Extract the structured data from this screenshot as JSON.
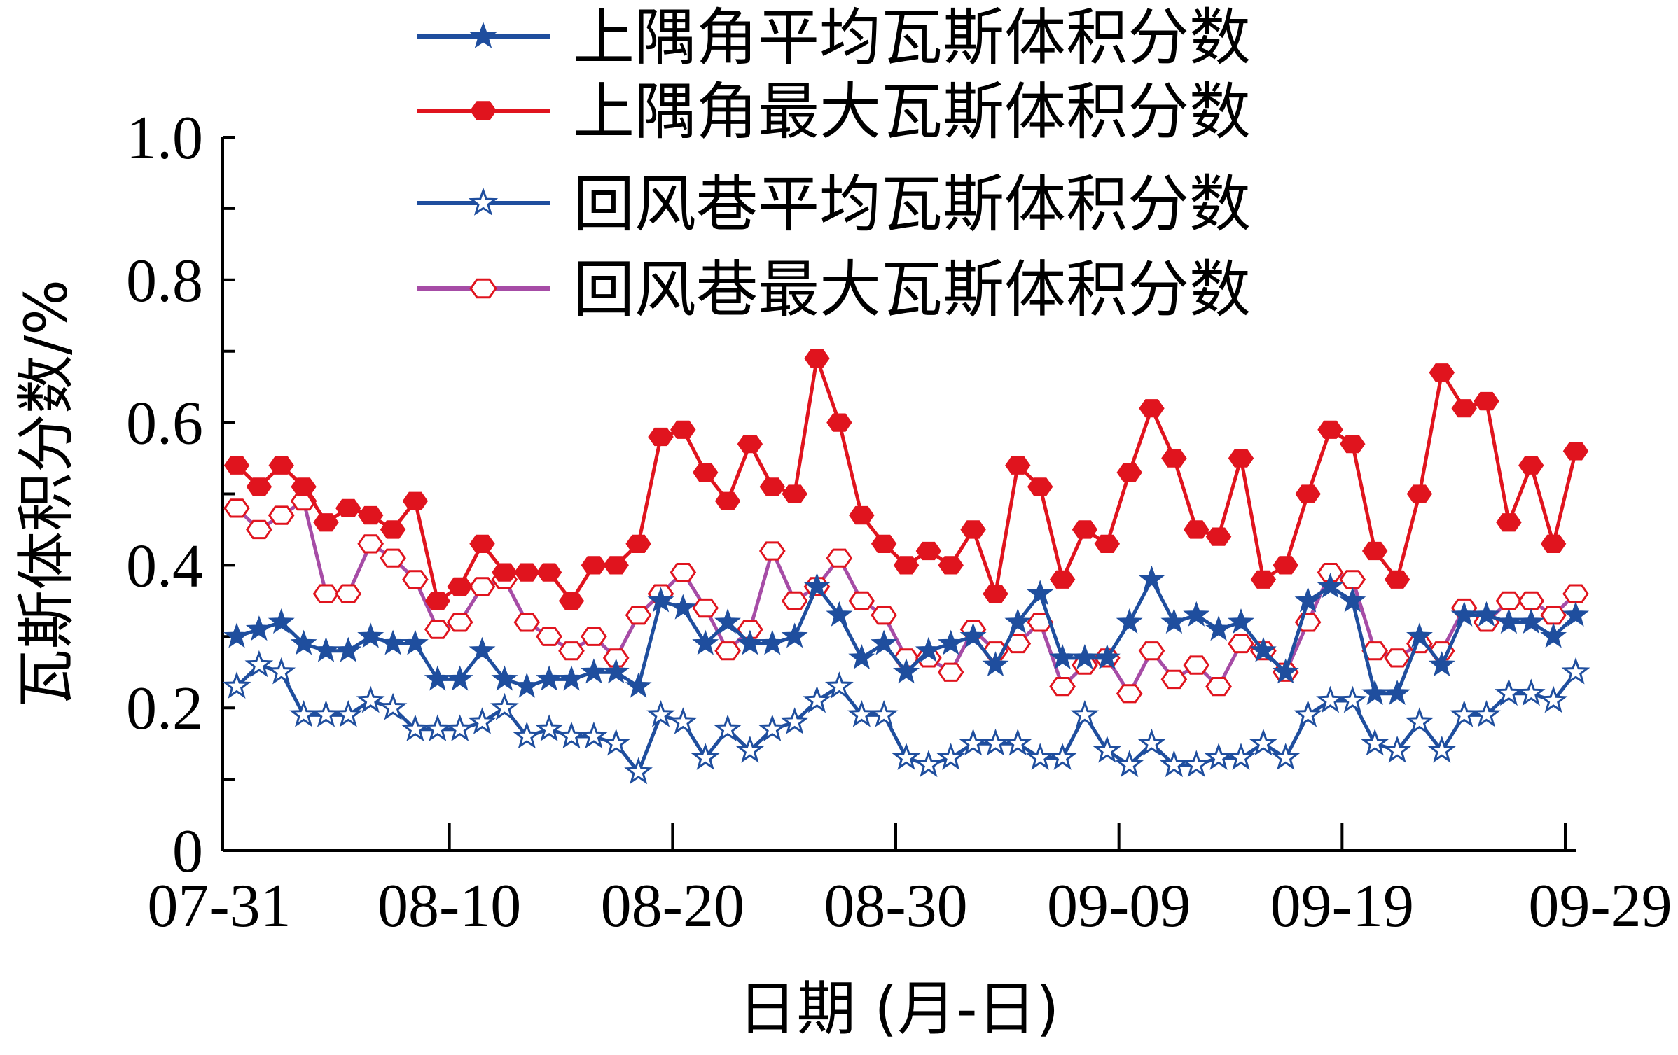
{
  "chart_data": {
    "type": "line",
    "title": "",
    "xlabel": "日期 (月-日)",
    "ylabel": "瓦斯体积分数/%",
    "ylim": [
      0,
      1.0
    ],
    "yticks": [
      0,
      0.2,
      0.4,
      0.6,
      0.8,
      1.0
    ],
    "ytick_labels": [
      "0",
      "0.2",
      "0.4",
      "0.6",
      "0.8",
      "1.0"
    ],
    "x_start": "07-31",
    "x_end": "09-29",
    "xtick_labels": [
      "07-31",
      "08-10",
      "08-20",
      "08-30",
      "09-09",
      "09-19",
      "09-29"
    ],
    "grid": false,
    "legend_position": "top",
    "series": [
      {
        "name": "上隅角平均瓦斯体积分数",
        "color": "#1f4e9e",
        "marker": "filled-star",
        "values": [
          0.3,
          0.31,
          0.32,
          0.29,
          0.28,
          0.28,
          0.3,
          0.29,
          0.29,
          0.24,
          0.24,
          0.28,
          0.24,
          0.23,
          0.24,
          0.24,
          0.25,
          0.25,
          0.23,
          0.35,
          0.34,
          0.29,
          0.32,
          0.29,
          0.29,
          0.3,
          0.37,
          0.33,
          0.27,
          0.29,
          0.25,
          0.28,
          0.29,
          0.3,
          0.26,
          0.32,
          0.36,
          0.27,
          0.27,
          0.27,
          0.32,
          0.38,
          0.32,
          0.33,
          0.31,
          0.32,
          0.28,
          0.25,
          0.35,
          0.37,
          0.35,
          0.22,
          0.22,
          0.3,
          0.26,
          0.33,
          0.33,
          0.32,
          0.32,
          0.3,
          0.33
        ]
      },
      {
        "name": "上隅角最大瓦斯体积分数",
        "color": "#e0141e",
        "marker": "filled-hexagon",
        "values": [
          0.54,
          0.51,
          0.54,
          0.51,
          0.46,
          0.48,
          0.47,
          0.45,
          0.49,
          0.35,
          0.37,
          0.43,
          0.39,
          0.39,
          0.39,
          0.35,
          0.4,
          0.4,
          0.43,
          0.58,
          0.59,
          0.53,
          0.49,
          0.57,
          0.51,
          0.5,
          0.69,
          0.6,
          0.47,
          0.43,
          0.4,
          0.42,
          0.4,
          0.45,
          0.36,
          0.54,
          0.51,
          0.38,
          0.45,
          0.43,
          0.53,
          0.62,
          0.55,
          0.45,
          0.44,
          0.55,
          0.38,
          0.4,
          0.5,
          0.59,
          0.57,
          0.42,
          0.38,
          0.5,
          0.67,
          0.62,
          0.63,
          0.46,
          0.54,
          0.43,
          0.56
        ]
      },
      {
        "name": "回风巷平均瓦斯体积分数",
        "color": "#1f4e9e",
        "marker": "hollow-star",
        "values": [
          0.23,
          0.26,
          0.25,
          0.19,
          0.19,
          0.19,
          0.21,
          0.2,
          0.17,
          0.17,
          0.17,
          0.18,
          0.2,
          0.16,
          0.17,
          0.16,
          0.16,
          0.15,
          0.11,
          0.19,
          0.18,
          0.13,
          0.17,
          0.14,
          0.17,
          0.18,
          0.21,
          0.23,
          0.19,
          0.19,
          0.13,
          0.12,
          0.13,
          0.15,
          0.15,
          0.15,
          0.13,
          0.13,
          0.19,
          0.14,
          0.12,
          0.15,
          0.12,
          0.12,
          0.13,
          0.13,
          0.15,
          0.13,
          0.19,
          0.21,
          0.21,
          0.15,
          0.14,
          0.18,
          0.14,
          0.19,
          0.19,
          0.22,
          0.22,
          0.21,
          0.25
        ]
      },
      {
        "name": "回风巷最大瓦斯体积分数",
        "color": "#a64ca6",
        "marker": "hollow-hexagon",
        "values": [
          0.48,
          0.45,
          0.47,
          0.49,
          0.36,
          0.36,
          0.43,
          0.41,
          0.38,
          0.31,
          0.32,
          0.37,
          0.38,
          0.32,
          0.3,
          0.28,
          0.3,
          0.27,
          0.33,
          0.36,
          0.39,
          0.34,
          0.28,
          0.31,
          0.42,
          0.35,
          0.37,
          0.41,
          0.35,
          0.33,
          0.27,
          0.27,
          0.25,
          0.31,
          0.28,
          0.29,
          0.32,
          0.23,
          0.26,
          0.27,
          0.22,
          0.28,
          0.24,
          0.26,
          0.23,
          0.29,
          0.28,
          0.25,
          0.32,
          0.39,
          0.38,
          0.28,
          0.27,
          0.29,
          0.28,
          0.34,
          0.32,
          0.35,
          0.35,
          0.33,
          0.36
        ]
      }
    ]
  }
}
